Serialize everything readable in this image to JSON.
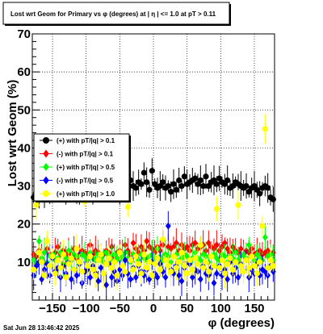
{
  "chart_data": {
    "type": "scatter",
    "title": "Lost wrt Geom for Primary vs φ (degrees) at | η | <= 1.0 at pT > 0.11",
    "xlabel": "φ (degrees)",
    "ylabel": "Lost wrt Geom (%)",
    "xlim": [
      -180,
      180
    ],
    "ylim": [
      0,
      70
    ],
    "x_ticks": [
      -150,
      -100,
      -50,
      0,
      50,
      100,
      150
    ],
    "x_tick_labels": [
      "−150",
      "−100",
      "−50",
      "0",
      "50",
      "100",
      "150"
    ],
    "y_ticks": [
      10,
      20,
      30,
      40,
      50,
      60,
      70
    ],
    "y_tick_labels": [
      "10",
      "20",
      "30",
      "40",
      "50",
      "60",
      "70"
    ],
    "grid": true,
    "legend_position": "upper-left",
    "bins": 90,
    "series": [
      {
        "name": "(+) with pT/|q| > 0.1",
        "color": "#000000",
        "marker": "circle",
        "values": [
          27.0,
          27.5,
          28.0,
          28.5,
          27.5,
          29.0,
          28.0,
          29.5,
          28.5,
          29.0,
          28.0,
          30.0,
          29.0,
          28.5,
          30.5,
          29.5,
          28.0,
          29.0,
          30.0,
          28.5,
          29.5,
          31.0,
          29.0,
          28.5,
          30.0,
          29.0,
          31.5,
          30.0,
          29.5,
          30.5,
          31.0,
          30.0,
          29.0,
          30.5,
          32.0,
          30.0,
          31.5,
          30.0,
          29.5,
          31.0,
          30.5,
          33.5,
          31.0,
          29.0,
          34.0,
          30.5,
          29.5,
          30.0,
          31.0,
          29.5,
          30.0,
          28.5,
          30.5,
          29.0,
          31.5,
          30.0,
          32.5,
          30.5,
          31.0,
          31.5,
          32.0,
          30.5,
          31.5,
          30.0,
          32.5,
          30.0,
          31.0,
          31.5,
          30.5,
          32.0,
          31.0,
          30.5,
          31.5,
          29.5,
          30.0,
          31.0,
          30.5,
          30.0,
          29.5,
          30.0,
          28.5,
          29.5,
          30.0,
          29.0,
          28.0,
          29.5,
          30.0,
          29.5,
          27.0,
          26.5
        ]
      },
      {
        "name": "(-) with pT/|q| > 0.1",
        "color": "#ff0000",
        "marker": "diamond",
        "values": [
          12.0,
          11.5,
          13.0,
          11.0,
          12.5,
          13.5,
          12.0,
          11.5,
          12.5,
          14.0,
          12.0,
          13.0,
          11.5,
          12.5,
          12.0,
          13.5,
          11.0,
          12.0,
          13.0,
          12.5,
          11.5,
          14.5,
          12.0,
          13.0,
          12.5,
          11.5,
          12.0,
          13.0,
          12.5,
          14.0,
          11.5,
          12.5,
          13.0,
          12.0,
          14.5,
          13.0,
          12.0,
          15.0,
          13.5,
          12.5,
          14.0,
          13.0,
          15.5,
          14.0,
          13.5,
          12.5,
          14.0,
          13.0,
          14.5,
          12.0,
          14.0,
          13.5,
          14.0,
          15.0,
          13.0,
          14.5,
          13.5,
          14.0,
          13.0,
          14.5,
          15.0,
          13.5,
          14.0,
          14.5,
          13.0,
          15.0,
          14.0,
          13.5,
          14.5,
          13.0,
          14.0,
          15.0,
          13.5,
          12.5,
          14.0,
          13.0,
          12.5,
          13.5,
          12.0,
          13.0,
          12.5,
          13.5,
          12.0,
          12.5,
          13.0,
          12.0,
          12.5,
          13.0,
          12.0,
          12.5
        ]
      },
      {
        "name": "(+) with pT/|q| > 0.5",
        "color": "#00ff00",
        "marker": "diamond",
        "values": [
          10.5,
          9.5,
          15.5,
          11.0,
          12.5,
          10.0,
          11.5,
          12.0,
          10.5,
          11.0,
          12.5,
          9.5,
          11.0,
          13.0,
          10.5,
          12.0,
          11.5,
          10.0,
          12.0,
          11.5,
          10.5,
          12.5,
          11.0,
          10.5,
          12.0,
          11.0,
          10.0,
          12.5,
          11.5,
          10.5,
          12.0,
          11.0,
          10.5,
          11.5,
          12.5,
          11.0,
          10.0,
          12.0,
          11.5,
          10.5,
          12.0,
          11.0,
          10.5,
          11.5,
          12.0,
          11.0,
          13.5,
          11.5,
          10.5,
          12.0,
          11.5,
          10.0,
          11.5,
          12.0,
          10.5,
          11.0,
          12.0,
          11.5,
          10.5,
          11.0,
          12.5,
          11.0,
          10.5,
          12.0,
          11.5,
          10.0,
          11.5,
          12.0,
          11.0,
          10.5,
          12.0,
          11.5,
          10.0,
          11.5,
          11.0,
          12.5,
          10.5,
          11.5,
          12.0,
          11.0,
          14.5,
          11.5,
          10.5,
          12.0,
          11.0,
          10.5,
          16.5,
          11.5,
          12.0,
          10.5
        ]
      },
      {
        "name": "(-) with pT/|q| > 0.5",
        "color": "#0000ff",
        "marker": "diamond",
        "values": [
          6.5,
          9.0,
          10.0,
          5.5,
          8.0,
          9.5,
          6.5,
          11.0,
          7.5,
          8.5,
          6.0,
          9.0,
          7.0,
          10.0,
          5.5,
          8.0,
          6.5,
          9.5,
          4.5,
          7.5,
          8.0,
          6.0,
          9.0,
          7.0,
          5.0,
          8.5,
          7.0,
          4.0,
          9.5,
          6.0,
          7.5,
          5.0,
          8.0,
          6.5,
          10.5,
          7.0,
          5.5,
          8.5,
          6.0,
          9.0,
          7.5,
          6.5,
          8.0,
          5.5,
          10.0,
          7.0,
          6.0,
          9.5,
          7.5,
          6.0,
          19.5,
          8.0,
          7.0,
          9.0,
          6.5,
          5.0,
          8.5,
          7.0,
          9.5,
          6.0,
          8.0,
          7.5,
          5.5,
          9.0,
          7.0,
          6.5,
          8.5,
          4.5,
          7.0,
          9.0,
          6.5,
          8.0,
          5.5,
          10.0,
          7.0,
          8.5,
          6.0,
          9.5,
          7.5,
          10.5,
          6.0,
          8.0,
          7.0,
          9.5,
          6.5,
          8.0,
          7.5,
          6.5,
          9.0,
          7.5
        ]
      },
      {
        "name": "(+) with pT/|q| > 1.0",
        "color": "#ffff00",
        "marker": "circle",
        "values": [
          8.0,
          25.0,
          12.5,
          10.0,
          6.5,
          15.5,
          9.0,
          11.5,
          7.0,
          10.5,
          8.5,
          12.0,
          6.0,
          9.5,
          11.0,
          8.0,
          13.5,
          10.0,
          7.5,
          26.0,
          9.0,
          11.5,
          8.0,
          6.5,
          10.5,
          12.0,
          7.0,
          9.5,
          11.0,
          8.5,
          10.0,
          6.5,
          12.5,
          9.0,
          7.5,
          24.5,
          10.5,
          8.0,
          11.5,
          9.5,
          7.0,
          12.0,
          8.5,
          10.0,
          6.5,
          9.5,
          11.0,
          8.0,
          16.0,
          10.5,
          9.0,
          7.5,
          11.5,
          8.5,
          10.0,
          12.5,
          9.0,
          7.0,
          10.5,
          8.0,
          11.0,
          9.5,
          14.5,
          8.5,
          10.0,
          7.5,
          11.5,
          9.0,
          24.0,
          8.5,
          10.5,
          7.0,
          9.5,
          11.0,
          8.0,
          10.0,
          25.0,
          9.0,
          7.5,
          10.5,
          8.5,
          11.5,
          9.0,
          7.0,
          10.0,
          19.5,
          45.0,
          8.5,
          10.5,
          9.0
        ]
      }
    ],
    "timestamp": "Sat Jun 28 13:46:42 2025"
  }
}
